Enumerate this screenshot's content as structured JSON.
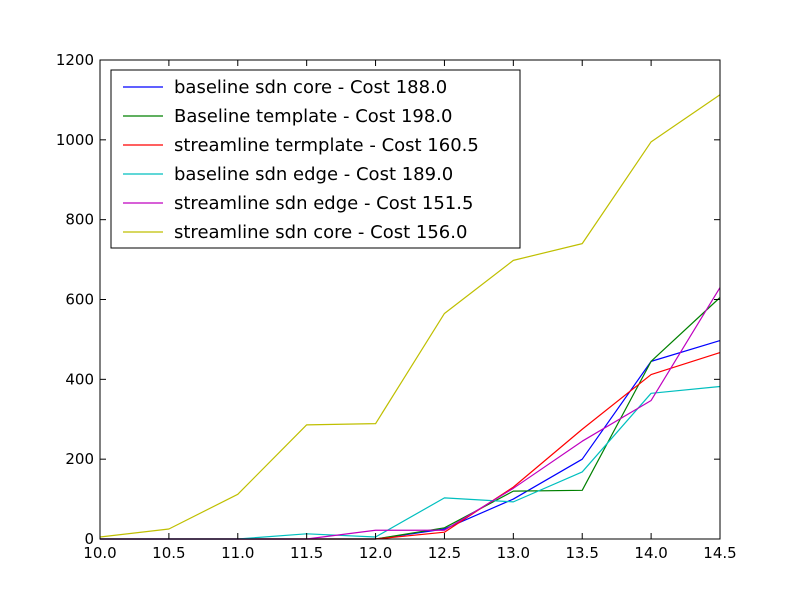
{
  "chart_data": {
    "type": "line",
    "title": "",
    "xlabel": "",
    "ylabel": "",
    "xlim": [
      10.0,
      14.5
    ],
    "ylim": [
      0,
      1200
    ],
    "xticks": [
      "10.0",
      "10.5",
      "11.0",
      "11.5",
      "12.0",
      "12.5",
      "13.0",
      "13.5",
      "14.0",
      "14.5"
    ],
    "yticks": [
      "0",
      "200",
      "400",
      "600",
      "800",
      "1000",
      "1200"
    ],
    "grid": false,
    "legend_position": "top-left",
    "x": [
      10.0,
      10.5,
      11.0,
      11.5,
      12.0,
      12.5,
      13.0,
      13.5,
      14.0,
      14.5
    ],
    "series": [
      {
        "name": "baseline sdn core - Cost 188.0",
        "color": "#0000ff",
        "values": [
          0,
          0,
          0,
          0,
          0,
          25,
          100,
          200,
          445,
          497
        ]
      },
      {
        "name": "Baseline template - Cost 198.0",
        "color": "#008000",
        "values": [
          0,
          0,
          0,
          0,
          0,
          28,
          120,
          122,
          445,
          605
        ]
      },
      {
        "name": "streamline termplate - Cost 160.5",
        "color": "#ff0000",
        "values": [
          0,
          0,
          0,
          0,
          0,
          17,
          130,
          275,
          412,
          467
        ]
      },
      {
        "name": "baseline sdn edge - Cost 189.0",
        "color": "#00bfbf",
        "values": [
          0,
          0,
          0,
          13,
          5,
          103,
          93,
          168,
          365,
          382
        ]
      },
      {
        "name": "streamline sdn edge - Cost 151.5",
        "color": "#bf00bf",
        "values": [
          0,
          0,
          0,
          0,
          22,
          22,
          127,
          245,
          347,
          630
        ]
      },
      {
        "name": "streamline sdn core - Cost 156.0",
        "color": "#bfbf00",
        "values": [
          5,
          25,
          112,
          286,
          289,
          565,
          698,
          740,
          995,
          1113
        ]
      }
    ]
  }
}
